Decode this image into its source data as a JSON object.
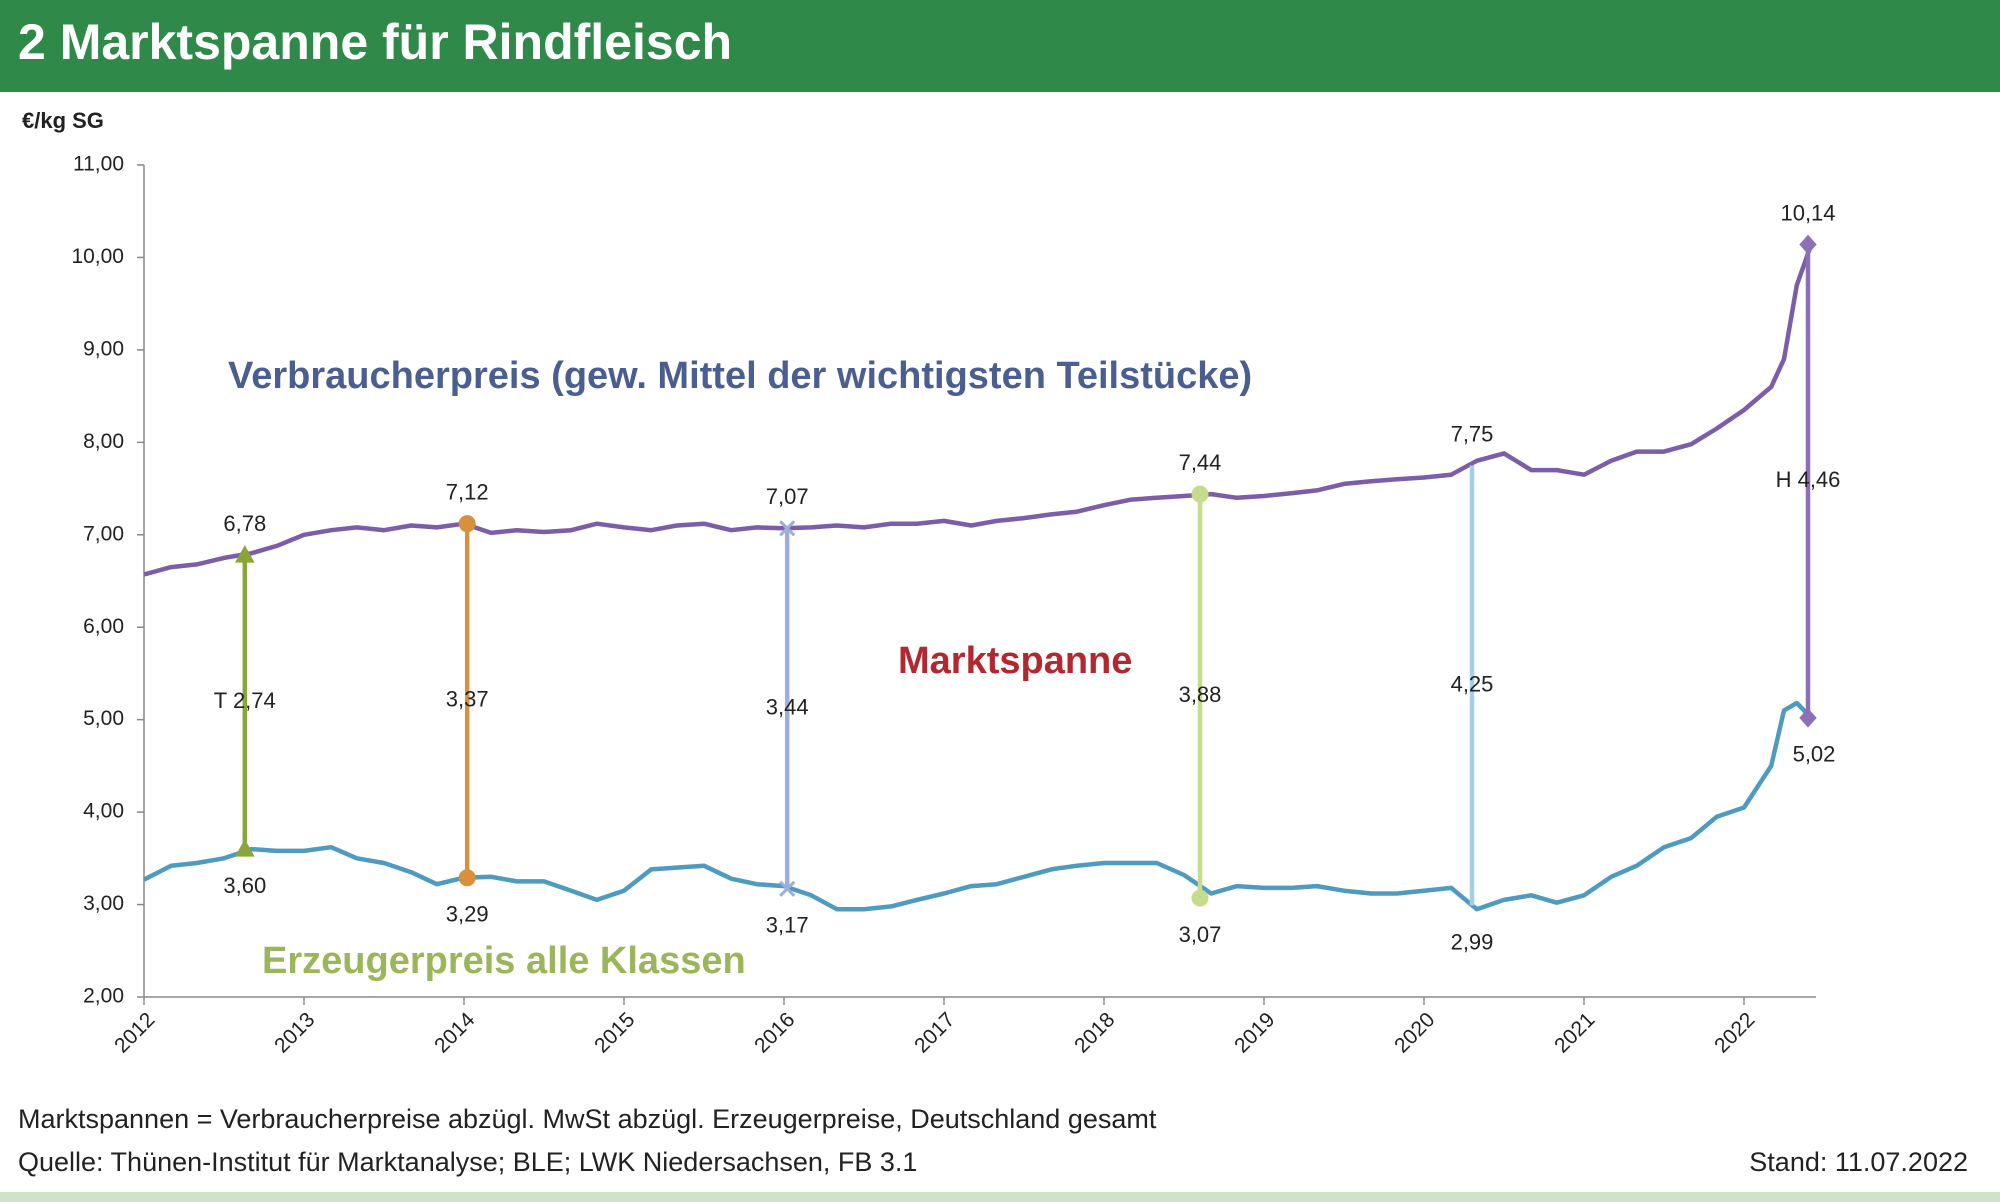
{
  "chart_data": {
    "type": "line",
    "title": "2 Marktspanne für Rindfleisch",
    "y_label": "€/kg SG",
    "annotation": "Marktspanne",
    "annotation_color": "#b3282f",
    "note": "Marktspannen = Verbraucherpreise abzügl. MwSt abzügl. Erzeugerpreise, Deutschland gesamt",
    "source": "Quelle: Thünen-Institut für Marktanalyse; BLE; LWK Niedersachsen, FB 3.1",
    "date": "Stand: 11.07.2022",
    "xlim": [
      2012,
      2022.45
    ],
    "xticks": [
      2012,
      2013,
      2014,
      2015,
      2016,
      2017,
      2018,
      2019,
      2020,
      2021,
      2022
    ],
    "ylim": [
      2,
      11
    ],
    "yticks": [
      {
        "value": 2,
        "label": "2,00"
      },
      {
        "value": 3,
        "label": "3,00"
      },
      {
        "value": 4,
        "label": "4,00"
      },
      {
        "value": 5,
        "label": "5,00"
      },
      {
        "value": 6,
        "label": "6,00"
      },
      {
        "value": 7,
        "label": "7,00"
      },
      {
        "value": 8,
        "label": "8,00"
      },
      {
        "value": 9,
        "label": "9,00"
      },
      {
        "value": 10,
        "label": "10,00"
      },
      {
        "value": 11,
        "label": "11,00"
      }
    ],
    "x": [
      2012.0,
      2012.17,
      2012.33,
      2012.5,
      2012.67,
      2012.83,
      2013.0,
      2013.17,
      2013.33,
      2013.5,
      2013.67,
      2013.83,
      2014.0,
      2014.17,
      2014.33,
      2014.5,
      2014.67,
      2014.83,
      2015.0,
      2015.17,
      2015.33,
      2015.5,
      2015.67,
      2015.83,
      2016.0,
      2016.17,
      2016.33,
      2016.5,
      2016.67,
      2016.83,
      2017.0,
      2017.17,
      2017.33,
      2017.5,
      2017.67,
      2017.83,
      2018.0,
      2018.17,
      2018.33,
      2018.5,
      2018.67,
      2018.83,
      2019.0,
      2019.17,
      2019.33,
      2019.5,
      2019.67,
      2019.83,
      2020.0,
      2020.17,
      2020.33,
      2020.5,
      2020.67,
      2020.83,
      2021.0,
      2021.17,
      2021.33,
      2021.5,
      2021.67,
      2021.83,
      2022.0,
      2022.17,
      2022.25,
      2022.33,
      2022.42
    ],
    "series": [
      {
        "name": "Verbraucherpreis (gew. Mittel der wichtigsten Teilstücke)",
        "color": "#7b5ea7",
        "label_color": "#4a5f8f",
        "values": [
          6.57,
          6.65,
          6.68,
          6.75,
          6.8,
          6.88,
          7.0,
          7.05,
          7.08,
          7.05,
          7.1,
          7.08,
          7.12,
          7.02,
          7.05,
          7.03,
          7.05,
          7.12,
          7.08,
          7.05,
          7.1,
          7.12,
          7.05,
          7.08,
          7.07,
          7.08,
          7.1,
          7.08,
          7.12,
          7.12,
          7.15,
          7.1,
          7.15,
          7.18,
          7.22,
          7.25,
          7.32,
          7.38,
          7.4,
          7.42,
          7.44,
          7.4,
          7.42,
          7.45,
          7.48,
          7.55,
          7.58,
          7.6,
          7.62,
          7.65,
          7.8,
          7.88,
          7.7,
          7.7,
          7.65,
          7.8,
          7.9,
          7.9,
          7.98,
          8.15,
          8.35,
          8.6,
          8.9,
          9.7,
          10.14
        ]
      },
      {
        "name": "Erzeugerpreis alle Klassen",
        "color": "#4f9bbf",
        "label_color": "#9bb55a",
        "values": [
          3.27,
          3.42,
          3.45,
          3.5,
          3.6,
          3.58,
          3.58,
          3.62,
          3.5,
          3.45,
          3.35,
          3.22,
          3.29,
          3.3,
          3.25,
          3.25,
          3.15,
          3.05,
          3.15,
          3.38,
          3.4,
          3.42,
          3.28,
          3.22,
          3.2,
          3.1,
          2.95,
          2.95,
          2.98,
          3.05,
          3.12,
          3.2,
          3.22,
          3.3,
          3.38,
          3.42,
          3.45,
          3.45,
          3.45,
          3.32,
          3.12,
          3.2,
          3.18,
          3.18,
          3.2,
          3.15,
          3.12,
          3.12,
          3.15,
          3.18,
          2.95,
          3.05,
          3.1,
          3.02,
          3.1,
          3.3,
          3.42,
          3.62,
          3.72,
          3.95,
          4.05,
          4.5,
          5.1,
          5.18,
          5.02
        ]
      }
    ],
    "spans": [
      {
        "x": 2012.63,
        "top": 6.78,
        "bottom": 3.6,
        "top_label": "6,78",
        "bottom_label": "3,60",
        "value": 2.74,
        "value_label": "T 2,74",
        "color": "#8aa63a",
        "marker": "triangle"
      },
      {
        "x": 2014.02,
        "top": 7.12,
        "bottom": 3.29,
        "top_label": "7,12",
        "bottom_label": "3,29",
        "value": 3.37,
        "value_label": "3,37",
        "color": "#d8903c",
        "marker": "circle"
      },
      {
        "x": 2016.02,
        "top": 7.07,
        "bottom": 3.17,
        "top_label": "7,07",
        "bottom_label": "3,17",
        "value": 3.44,
        "value_label": "3,44",
        "color": "#9caedc",
        "marker": "x"
      },
      {
        "x": 2018.6,
        "top": 7.44,
        "bottom": 3.07,
        "top_label": "7,44",
        "bottom_label": "3,07",
        "value": 3.88,
        "value_label": "3,88",
        "color": "#c5dc8d",
        "marker": "circle"
      },
      {
        "x": 2020.3,
        "top": 7.75,
        "bottom": 2.99,
        "top_label": "7,75",
        "bottom_label": "2,99",
        "value": 4.25,
        "value_label": "4,25",
        "color": "#a5cfe6",
        "marker": "none"
      },
      {
        "x": 2022.4,
        "top": 10.14,
        "bottom": 5.02,
        "top_label": "10,14",
        "bottom_label": "5,02",
        "value": 4.46,
        "value_label": "H 4,46",
        "color": "#8c6fb6",
        "marker": "diamond"
      }
    ]
  }
}
